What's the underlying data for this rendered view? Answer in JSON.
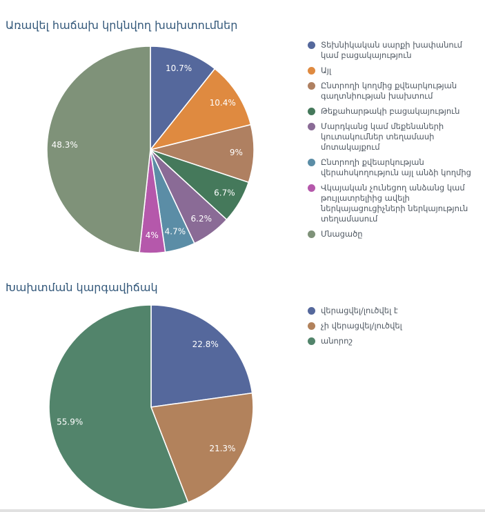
{
  "page": {
    "background": "#ffffff",
    "title_color": "#33587a",
    "legend_text_color": "#4e5761",
    "divider_color": "#e1e1e1"
  },
  "chart_data": [
    {
      "type": "pie",
      "title": "Առավել հաճախ կրկնվող խախտումներ",
      "direction": "clockwise",
      "start_angle_deg": 0,
      "legend_position": "right",
      "radius": 150,
      "label_radius_ratio": 0.83,
      "label_color": "#ffffff",
      "labels": [
        "Տեխնիկական սարքի խափանում կամ բացակայություն",
        "Այլ",
        "Ընտրողի կողմից քվեարկության գաղտնիության խախտում",
        "Թեքահարթակի բացակայություն",
        "Մարդկանց կամ մեքենաների կուտակումներ տեղամասի մոտակայքում",
        "Ընտրողի քվեարկության վերահսկողություն այլ անձի կողմից",
        "Վկայական չունեցող անձանց կամ թույլատրելիից ավելի ներկայացուցիչների ներկայություն տեղամասում",
        "Մնացածը"
      ],
      "values": [
        10.7,
        10.4,
        9,
        6.7,
        6.2,
        4.7,
        4,
        48.3
      ],
      "percent_labels": [
        "10.7%",
        "10.4%",
        "9%",
        "6.7%",
        "6.2%",
        "4.7%",
        "4%",
        "48.3%"
      ],
      "colors": [
        "#55689c",
        "#df8a40",
        "#af8061",
        "#45795b",
        "#8a6b96",
        "#5b8da6",
        "#b558ab",
        "#7f9279"
      ]
    },
    {
      "type": "pie",
      "title": "Խախտման կարգավիճակ",
      "direction": "clockwise",
      "start_angle_deg": 0,
      "legend_position": "right",
      "radius": 148,
      "label_radius_ratio": 0.81,
      "label_color": "#ffffff",
      "labels": [
        "վերացվել/լուծվել է",
        "չի վերացվել/լուծվել",
        "անորոշ"
      ],
      "values": [
        22.8,
        21.3,
        55.9
      ],
      "percent_labels": [
        "22.8%",
        "21.3%",
        "55.9%"
      ],
      "colors": [
        "#55689c",
        "#b2825c",
        "#52846b"
      ]
    }
  ]
}
